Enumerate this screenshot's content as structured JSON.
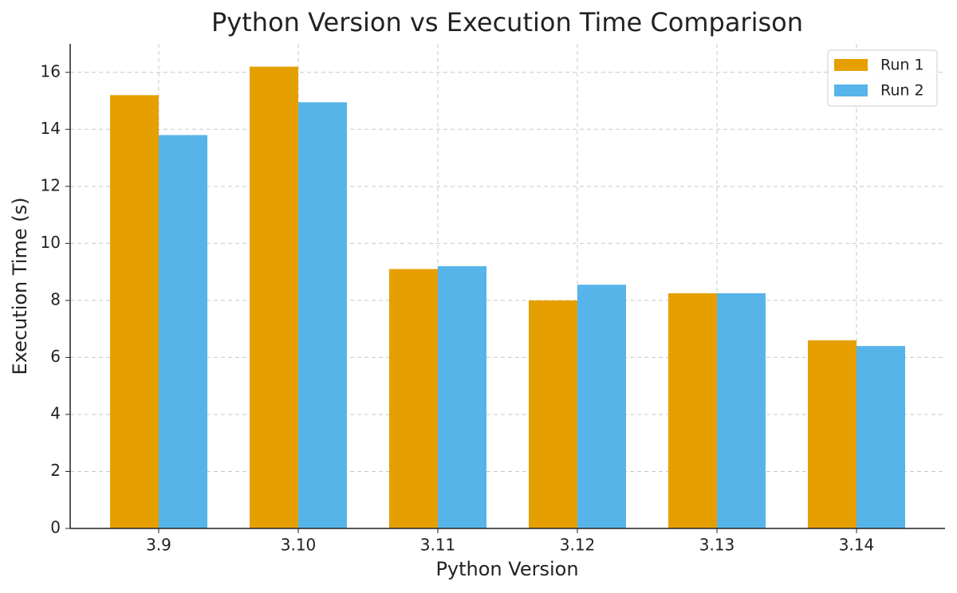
{
  "chart_data": {
    "type": "bar",
    "title": "Python Version vs Execution Time Comparison",
    "x_label": "Python Version",
    "y_label": "Execution Time (s)",
    "categories": [
      "3.9",
      "3.10",
      "3.11",
      "3.12",
      "3.13",
      "3.14"
    ],
    "series": [
      {
        "name": "Run 1",
        "color": "#E69F00",
        "values": [
          15.2,
          16.2,
          9.1,
          8.0,
          8.25,
          6.6
        ]
      },
      {
        "name": "Run 2",
        "color": "#56B4E9",
        "values": [
          13.8,
          14.95,
          9.2,
          8.55,
          8.25,
          6.4
        ]
      }
    ],
    "ylim": [
      0,
      17
    ],
    "yticks": [
      0,
      2,
      4,
      6,
      8,
      10,
      12,
      14,
      16
    ],
    "grid": true,
    "legend": "upper right"
  }
}
